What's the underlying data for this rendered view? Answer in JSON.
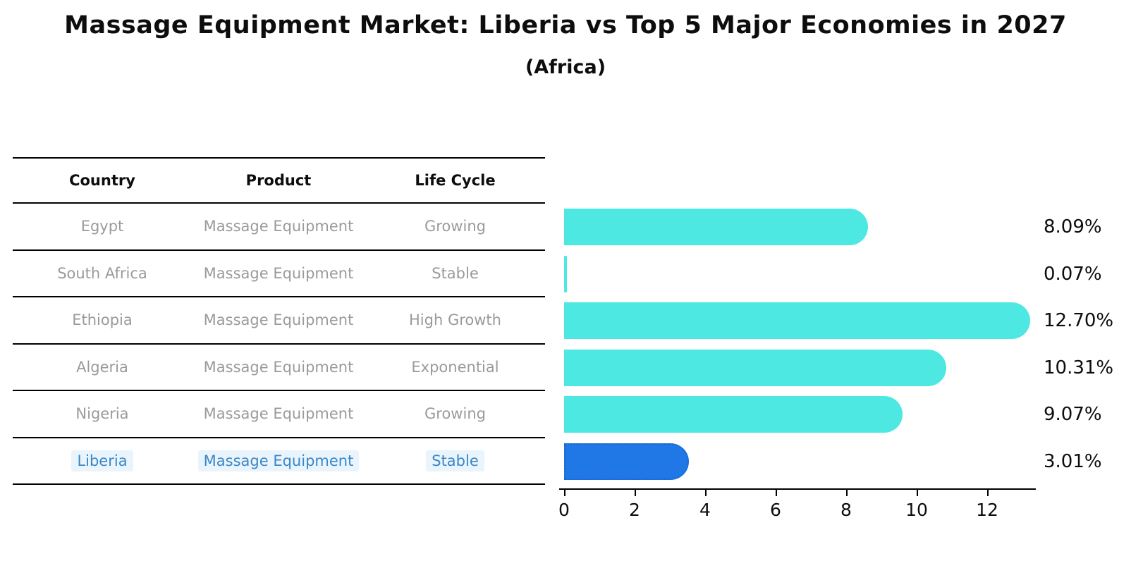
{
  "header": {
    "title": "Massage Equipment Market: Liberia vs Top 5 Major Economies in 2027",
    "subtitle": "(Africa)"
  },
  "table": {
    "columns": [
      "Country",
      "Product",
      "Life Cycle"
    ],
    "rows": [
      [
        "Egypt",
        "Massage Equipment",
        "Growing"
      ],
      [
        "South Africa",
        "Massage Equipment",
        "Stable"
      ],
      [
        "Ethiopia",
        "Massage Equipment",
        "High Growth"
      ],
      [
        "Algeria",
        "Massage Equipment",
        "Exponential"
      ],
      [
        "Nigeria",
        "Massage Equipment",
        "Growing"
      ],
      [
        "Liberia",
        "Massage Equipment",
        "Stable"
      ]
    ],
    "highlight_row_index": 5,
    "highlight_text_color": "#3a87c8"
  },
  "chart_data": {
    "type": "bar",
    "orientation": "horizontal",
    "title": "Massage Equipment Market: Liberia vs Top 5 Major Economies in 2027",
    "subtitle": "(Africa)",
    "categories": [
      "Egypt",
      "South Africa",
      "Ethiopia",
      "Algeria",
      "Nigeria",
      "Liberia"
    ],
    "values": [
      8.09,
      0.07,
      12.7,
      10.31,
      9.07,
      3.01
    ],
    "value_labels": [
      "8.09%",
      "0.07%",
      "12.70%",
      "10.31%",
      "9.07%",
      "3.01%"
    ],
    "xlabel": "",
    "ylabel": "",
    "xticks": [
      0,
      2,
      4,
      6,
      8,
      10,
      12
    ],
    "xlim": [
      0,
      13.4
    ],
    "grid": false,
    "legend": "none",
    "bar_color": "#4de8e1",
    "highlight_bar_color": "#2077e6",
    "highlight_index": 5,
    "highlight_bar_style": "dotted-border"
  }
}
